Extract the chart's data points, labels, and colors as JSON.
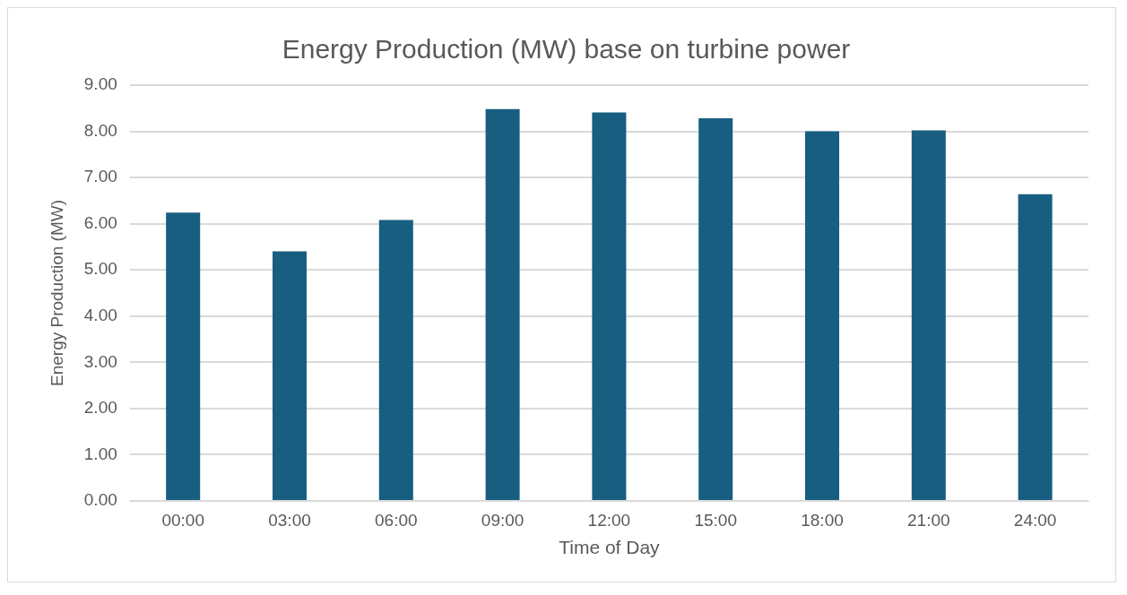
{
  "chart_data": {
    "type": "bar",
    "title": "Energy Production (MW) base on turbine power",
    "xlabel": "Time of Day",
    "ylabel": "Energy Production (MW)",
    "categories": [
      "00:00",
      "03:00",
      "06:00",
      "09:00",
      "12:00",
      "15:00",
      "18:00",
      "21:00",
      "24:00"
    ],
    "values": [
      6.24,
      5.4,
      6.08,
      8.48,
      8.41,
      8.28,
      8.0,
      8.02,
      6.64
    ],
    "color": "#175e80",
    "ylim": [
      0,
      9
    ],
    "yticks": [
      {
        "value": 0,
        "label": "0.00"
      },
      {
        "value": 1,
        "label": "1.00"
      },
      {
        "value": 2,
        "label": "2.00"
      },
      {
        "value": 3,
        "label": "3.00"
      },
      {
        "value": 4,
        "label": "4.00"
      },
      {
        "value": 5,
        "label": "5.00"
      },
      {
        "value": 6,
        "label": "6.00"
      },
      {
        "value": 7,
        "label": "7.00"
      },
      {
        "value": 8,
        "label": "8.00"
      },
      {
        "value": 9,
        "label": "9.00"
      }
    ],
    "grid": "y",
    "legend": false
  }
}
